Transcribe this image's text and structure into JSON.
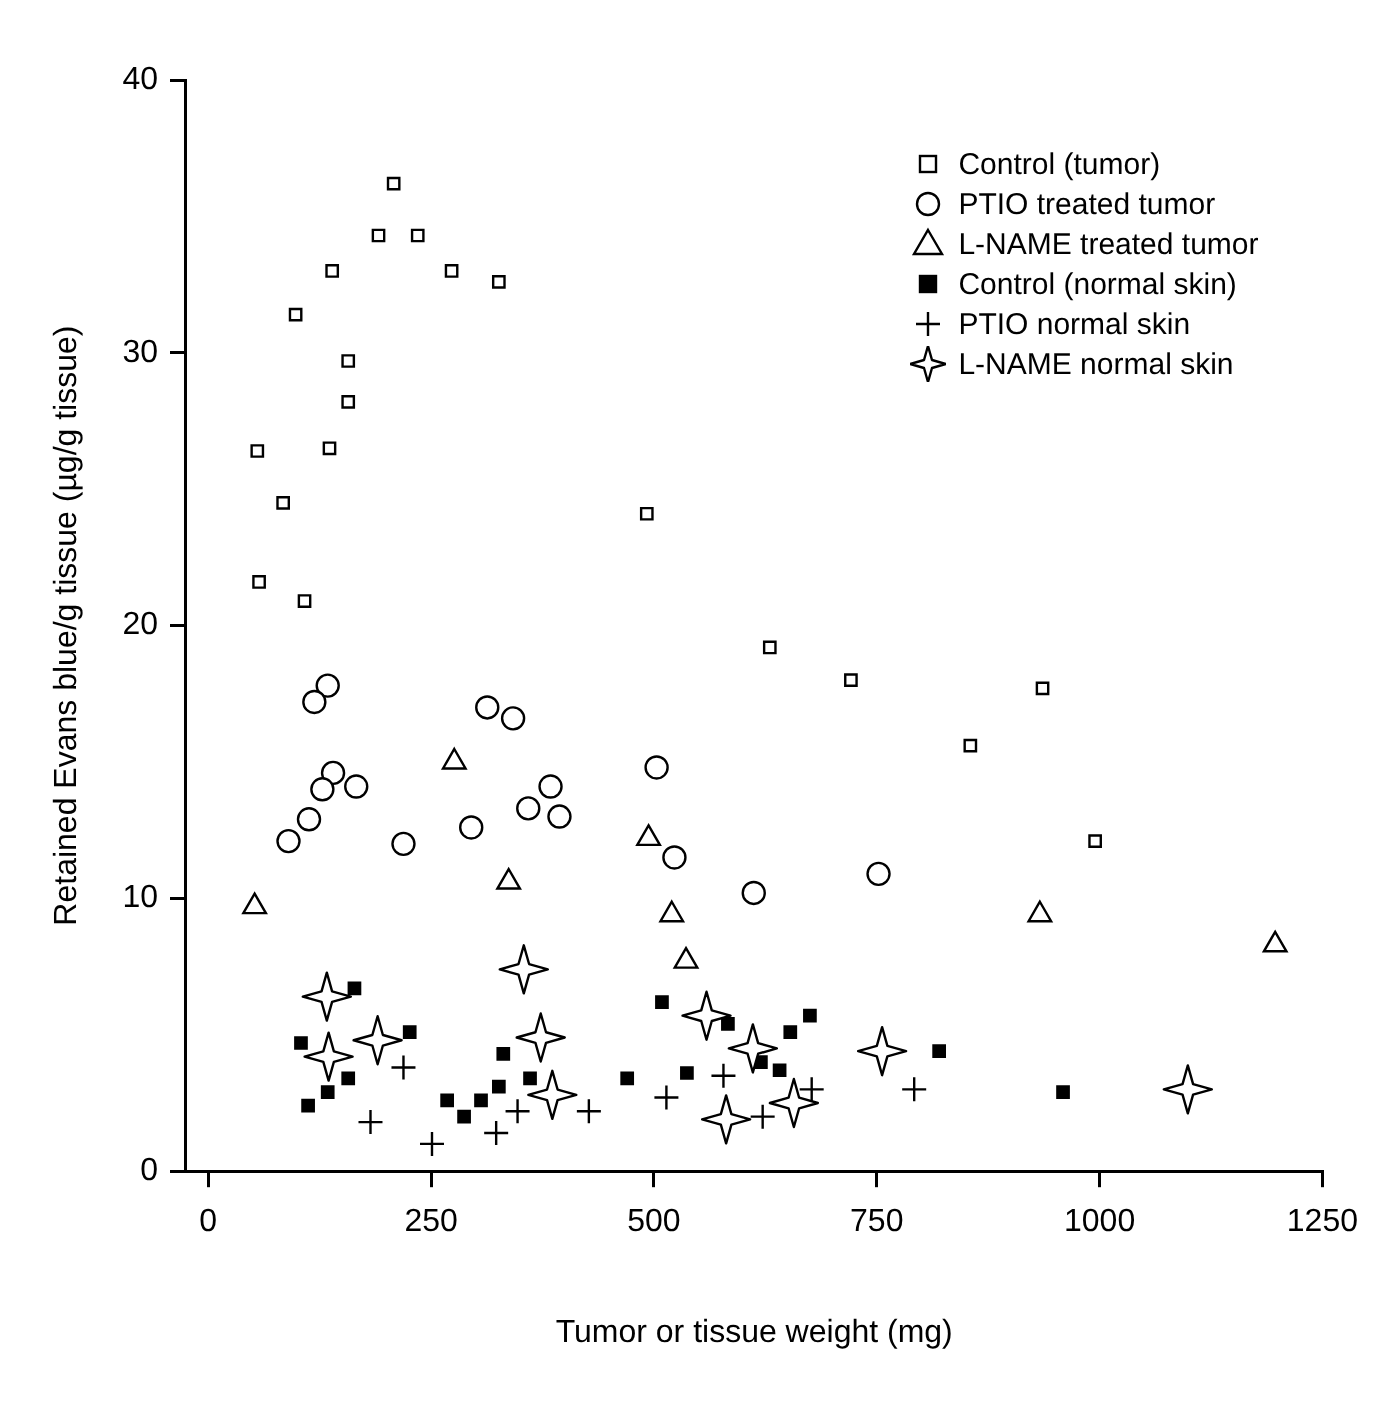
{
  "chart_data": {
    "type": "scatter",
    "xlabel": "Tumor or tissue weight (mg)",
    "ylabel": "Retained Evans blue/g tissue (µg/g tissue)",
    "xlim": [
      -25,
      1250
    ],
    "xticks": [
      0,
      250,
      500,
      750,
      1000,
      1250
    ],
    "ylim": [
      0,
      40
    ],
    "yticks": [
      0,
      10,
      20,
      30,
      40
    ],
    "grid": false,
    "legend": "top right",
    "series": [
      {
        "name": "Control (tumor)",
        "color": "#000000",
        "marker": "square",
        "x": [
          208,
          191,
          235,
          139,
          273,
          326,
          98,
          157,
          157,
          55,
          136,
          84,
          492,
          57,
          108,
          630,
          721,
          936,
          855,
          995
        ],
        "values": [
          36.2,
          34.3,
          34.3,
          33.0,
          33.0,
          32.6,
          31.4,
          29.7,
          28.2,
          26.4,
          26.5,
          24.5,
          24.1,
          21.6,
          20.9,
          19.2,
          18.0,
          17.7,
          15.6,
          12.1
        ]
      },
      {
        "name": "PTIO treated tumor",
        "color": "#000000",
        "marker": "circle",
        "x": [
          134,
          119,
          313,
          342,
          140,
          128,
          166,
          113,
          90,
          219,
          295,
          384,
          359,
          394,
          503,
          523,
          612,
          752
        ],
        "values": [
          17.8,
          17.2,
          17.0,
          16.6,
          14.6,
          14.0,
          14.1,
          12.9,
          12.1,
          12.0,
          12.6,
          14.1,
          13.3,
          13.0,
          14.8,
          11.5,
          10.2,
          10.9
        ]
      },
      {
        "name": "L-NAME treated tumor",
        "color": "#000000",
        "marker": "triangle",
        "x": [
          52,
          276,
          337,
          494,
          520,
          536,
          933,
          1197
        ],
        "values": [
          9.7,
          15.0,
          10.6,
          12.2,
          9.4,
          7.7,
          9.4,
          8.3
        ]
      },
      {
        "name": "Control (normal skin)",
        "color": "#000000",
        "marker": "square",
        "x": [
          164,
          104,
          226,
          157,
          134,
          112,
          268,
          287,
          306,
          326,
          331,
          361,
          470,
          509,
          537,
          583,
          620,
          641,
          653,
          675,
          820,
          959
        ],
        "values": [
          6.7,
          4.7,
          5.1,
          3.4,
          2.9,
          2.4,
          2.6,
          2.0,
          2.6,
          3.1,
          4.3,
          3.4,
          3.4,
          6.2,
          3.6,
          5.4,
          4.0,
          3.7,
          5.1,
          5.7,
          4.4,
          2.9
        ]
      },
      {
        "name": "PTIO normal skin",
        "color": "#000000",
        "marker": "cross",
        "x": [
          219,
          182,
          251,
          323,
          347,
          427,
          514,
          578,
          622,
          677,
          792
        ],
        "values": [
          3.8,
          1.8,
          1.0,
          1.4,
          2.2,
          2.2,
          2.7,
          3.5,
          2.0,
          3.0,
          3.0
        ]
      },
      {
        "name": "L-NAME normal skin",
        "color": "#000000",
        "marker": "star",
        "x": [
          133,
          135,
          190,
          354,
          373,
          386,
          559,
          611,
          581,
          657,
          756,
          1099
        ],
        "values": [
          6.4,
          4.2,
          4.8,
          7.4,
          4.9,
          2.8,
          5.7,
          4.5,
          1.9,
          2.5,
          4.4,
          3.0
        ]
      }
    ]
  }
}
